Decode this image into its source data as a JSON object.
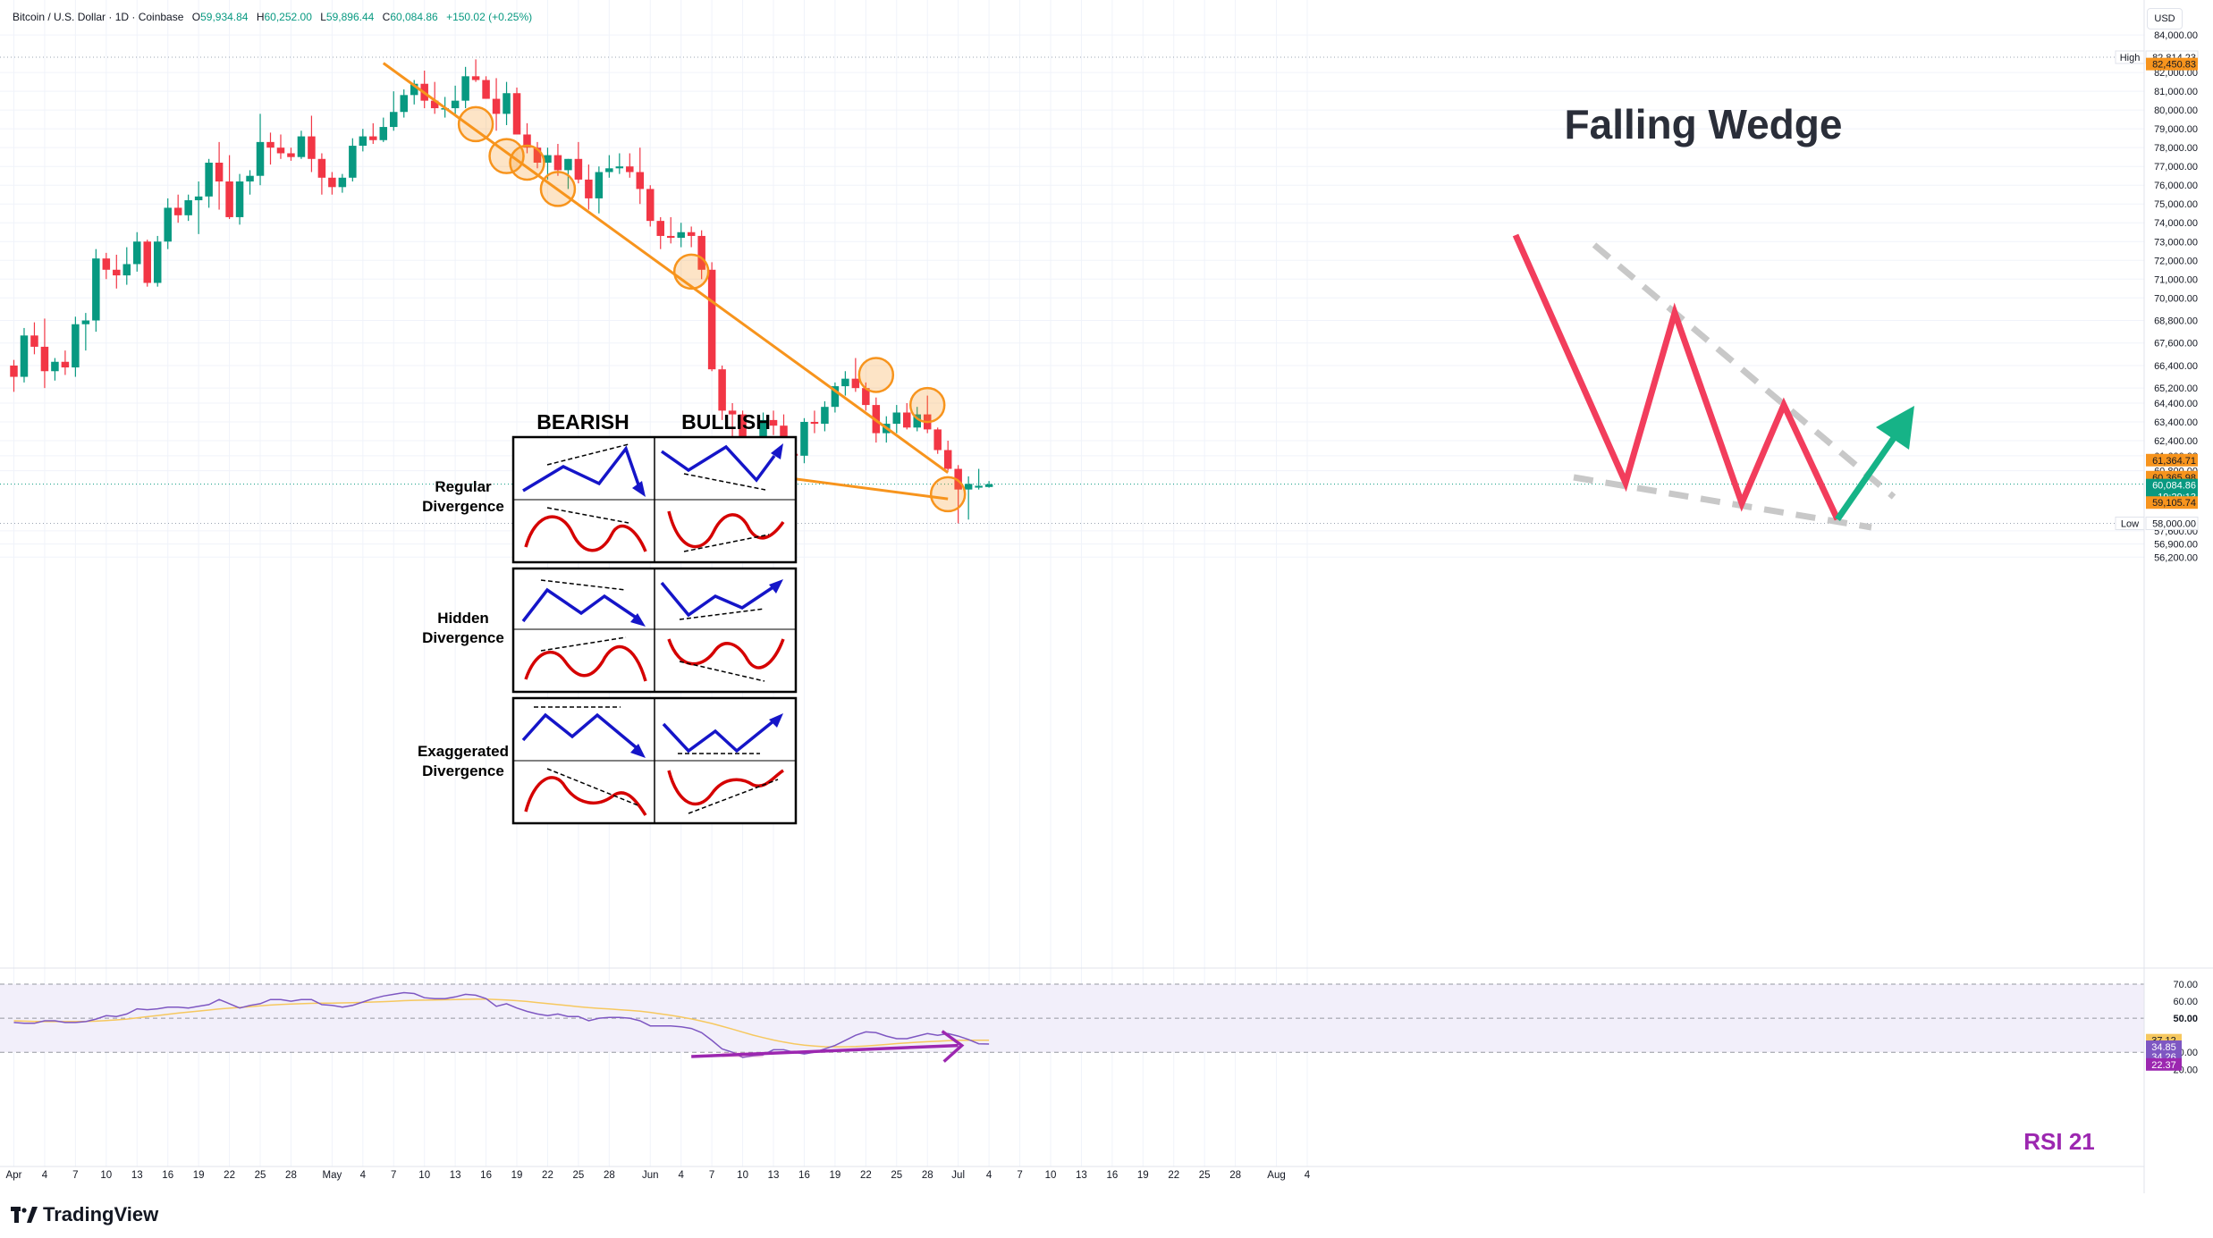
{
  "header": {
    "symbol": "Bitcoin / U.S. Dollar · 1D · Coinbase",
    "open_label": "O",
    "open": "59,934.84",
    "high_label": "H",
    "high": "60,252.00",
    "low_label": "L",
    "low": "59,896.44",
    "close_label": "C",
    "close": "60,084.86",
    "change": "+150.02 (+0.25%)"
  },
  "currency": "USD",
  "brand": "TradingView",
  "colors": {
    "up": "#089981",
    "down": "#f23645",
    "trendline": "#f7941d",
    "rsi": "#7e57c2",
    "rsi_ma": "#f6c85f",
    "annotation_arrow": "#9c27b0",
    "wedge_line": "#f23d5c",
    "wedge_arrow": "#16b387"
  },
  "chart_data": [
    {
      "type": "candlestick",
      "title": "Falling Wedge",
      "ylim": [
        55500,
        85200
      ],
      "x_tick_labels": [
        "Apr",
        "4",
        "7",
        "10",
        "13",
        "16",
        "19",
        "22",
        "25",
        "28",
        "May",
        "4",
        "7",
        "10",
        "13",
        "16",
        "19",
        "22",
        "25",
        "28",
        "Jun",
        "4",
        "7",
        "10",
        "13",
        "16",
        "19",
        "22",
        "25",
        "28",
        "Jul",
        "4",
        "7",
        "10",
        "13",
        "16",
        "19",
        "22",
        "25",
        "28",
        "Aug",
        "4"
      ],
      "y_tick_labels": [
        "84,000.00",
        "82,000.00",
        "81,000.00",
        "80,000.00",
        "79,000.00",
        "78,000.00",
        "77,000.00",
        "76,000.00",
        "75,000.00",
        "74,000.00",
        "73,000.00",
        "72,000.00",
        "71,000.00",
        "70,000.00",
        "68,800.00",
        "67,600.00",
        "66,400.00",
        "65,200.00",
        "64,400.00",
        "63,400.00",
        "62,400.00",
        "61,600.00",
        "60,800.00",
        "57,600.00",
        "56,900.00",
        "56,200.00"
      ],
      "price_labels": [
        {
          "label": "High",
          "value": "82,814.23"
        },
        {
          "label": "",
          "value": "82,450.83"
        },
        {
          "label": "",
          "value": "61,364.71"
        },
        {
          "label": "",
          "value": "60,365.98"
        },
        {
          "label": "",
          "value": "60,084.86"
        },
        {
          "label": "",
          "value": "19:29:13"
        },
        {
          "label": "",
          "value": "59,105.74"
        },
        {
          "label": "Low",
          "value": "58,000.00"
        }
      ],
      "candles": [
        [
          66400,
          66700,
          65000,
          65800
        ],
        [
          65800,
          68400,
          65500,
          68000
        ],
        [
          68000,
          68700,
          67000,
          67400
        ],
        [
          67400,
          68900,
          65200,
          66100
        ],
        [
          66100,
          66800,
          65600,
          66600
        ],
        [
          66600,
          67200,
          65900,
          66300
        ],
        [
          66300,
          69000,
          65800,
          68600
        ],
        [
          68600,
          69200,
          67200,
          68800
        ],
        [
          68800,
          72600,
          68200,
          72100
        ],
        [
          72100,
          72400,
          71000,
          71500
        ],
        [
          71500,
          72300,
          70500,
          71200
        ],
        [
          71200,
          72700,
          70700,
          71800
        ],
        [
          71800,
          73500,
          71400,
          73000
        ],
        [
          73000,
          73100,
          70600,
          70800
        ],
        [
          70800,
          73300,
          70600,
          73000
        ],
        [
          73000,
          75300,
          72600,
          74800
        ],
        [
          74800,
          75500,
          74000,
          74400
        ],
        [
          74400,
          75500,
          74100,
          75200
        ],
        [
          75200,
          76200,
          73400,
          75400
        ],
        [
          75400,
          77400,
          74800,
          77200
        ],
        [
          77200,
          78300,
          74700,
          76200
        ],
        [
          76200,
          77600,
          74200,
          74300
        ],
        [
          74300,
          76600,
          73900,
          76200
        ],
        [
          76200,
          76800,
          75500,
          76500
        ],
        [
          76500,
          79800,
          76000,
          78300
        ],
        [
          78300,
          78800,
          77100,
          78000
        ],
        [
          78000,
          78700,
          77400,
          77700
        ],
        [
          77700,
          78000,
          77300,
          77500
        ],
        [
          77500,
          78900,
          77400,
          78600
        ],
        [
          78600,
          79700,
          76700,
          77400
        ],
        [
          77400,
          77700,
          75500,
          76400
        ],
        [
          76400,
          76700,
          75500,
          75900
        ],
        [
          75900,
          76600,
          75600,
          76400
        ],
        [
          76400,
          78500,
          76200,
          78100
        ],
        [
          78100,
          79000,
          77800,
          78600
        ],
        [
          78600,
          79300,
          78200,
          78400
        ],
        [
          78400,
          79600,
          78300,
          79100
        ],
        [
          79100,
          81000,
          78900,
          79900
        ],
        [
          79900,
          81100,
          79600,
          80800
        ],
        [
          80800,
          81600,
          80300,
          81400
        ],
        [
          81400,
          82100,
          80100,
          80500
        ],
        [
          80500,
          81500,
          79800,
          80100
        ],
        [
          80100,
          80700,
          79600,
          80100
        ],
        [
          80100,
          81300,
          79800,
          80500
        ],
        [
          80500,
          82300,
          80100,
          81800
        ],
        [
          81800,
          82700,
          81500,
          81600
        ],
        [
          81600,
          81800,
          80600,
          80600
        ],
        [
          80600,
          81700,
          78900,
          79800
        ],
        [
          79800,
          81500,
          79200,
          80900
        ],
        [
          80900,
          81200,
          78700,
          78700
        ],
        [
          78700,
          79300,
          77700,
          78000
        ],
        [
          78000,
          78300,
          76900,
          77200
        ],
        [
          77200,
          78000,
          76300,
          77600
        ],
        [
          77600,
          78200,
          76500,
          76800
        ],
        [
          76800,
          77400,
          75800,
          77400
        ],
        [
          77400,
          78300,
          76100,
          76300
        ],
        [
          76300,
          77100,
          74700,
          75300
        ],
        [
          75300,
          77000,
          74500,
          76700
        ],
        [
          76700,
          77600,
          76400,
          76900
        ],
        [
          76900,
          77700,
          76600,
          77000
        ],
        [
          77000,
          77700,
          76400,
          76700
        ],
        [
          76700,
          78000,
          75000,
          75800
        ],
        [
          75800,
          76000,
          73800,
          74100
        ],
        [
          74100,
          74300,
          72600,
          73300
        ],
        [
          73300,
          74300,
          72900,
          73200
        ],
        [
          73200,
          74000,
          72700,
          73500
        ],
        [
          73500,
          73800,
          72700,
          73300
        ],
        [
          73300,
          73600,
          71000,
          71500
        ],
        [
          71500,
          71900,
          66100,
          66200
        ],
        [
          66200,
          66400,
          63500,
          64000
        ],
        [
          64000,
          64400,
          61300,
          63800
        ],
        [
          63800,
          64000,
          59600,
          60700
        ],
        [
          60700,
          61500,
          59900,
          61200
        ],
        [
          61200,
          63900,
          61000,
          63500
        ],
        [
          63500,
          64000,
          62700,
          63200
        ],
        [
          63200,
          63800,
          61200,
          61700
        ],
        [
          61700,
          62400,
          60800,
          61600
        ],
        [
          61600,
          63600,
          61200,
          63400
        ],
        [
          63400,
          64000,
          62800,
          63300
        ],
        [
          63300,
          64500,
          62900,
          64200
        ],
        [
          64200,
          65500,
          63900,
          65300
        ],
        [
          65300,
          66100,
          64800,
          65700
        ],
        [
          65700,
          66800,
          65000,
          65200
        ],
        [
          65200,
          65500,
          64000,
          64300
        ],
        [
          64300,
          64700,
          62300,
          62800
        ],
        [
          62800,
          63700,
          62300,
          63300
        ],
        [
          63300,
          64300,
          62800,
          63900
        ],
        [
          63900,
          64400,
          63000,
          63100
        ],
        [
          63100,
          64200,
          62900,
          63800
        ],
        [
          63800,
          64800,
          62800,
          63000
        ],
        [
          63000,
          63100,
          61700,
          61900
        ],
        [
          61900,
          62400,
          60800,
          60900
        ],
        [
          60900,
          61100,
          58000,
          59800
        ],
        [
          59800,
          60500,
          58200,
          60100
        ],
        [
          59900,
          60900,
          59800,
          60000
        ],
        [
          59934.84,
          60252,
          59896.44,
          60084.86
        ]
      ],
      "trendlines": [
        {
          "name": "upper",
          "points": [
            [
              "May 5",
              82500
            ],
            [
              "Jun 29",
              60700
            ]
          ]
        },
        {
          "name": "lower",
          "points": [
            [
              "Jun 1",
              61300
            ],
            [
              "Jun 29",
              59300
            ]
          ]
        }
      ]
    },
    {
      "type": "line",
      "title": "RSI 21",
      "ylim": [
        20,
        72
      ],
      "y_tick_labels": [
        "70.00",
        "60.00",
        "50.00",
        "30.00",
        "20.00"
      ],
      "value_labels": [
        "37.12",
        "34.85",
        "34.26",
        "22.37"
      ],
      "series": [
        {
          "values": [
            47.5,
            47,
            47,
            48.5,
            48.5,
            47.5,
            47.5,
            48,
            49.5,
            51.5,
            51,
            52.5,
            55.5,
            55,
            55.5,
            56.5,
            56.5,
            56,
            57,
            58,
            61,
            58.5,
            56,
            57.5,
            58.5,
            61,
            61,
            60,
            61,
            61,
            58,
            57.5,
            56.5,
            57.5,
            59.5,
            61.5,
            63,
            64,
            65,
            64.5,
            62,
            61.5,
            61.5,
            62.5,
            64,
            63.5,
            61.5,
            57,
            58.5,
            56,
            54,
            52.5,
            51.5,
            52.5,
            51,
            51,
            48.5,
            50,
            50.5,
            50.5,
            50,
            48.5,
            45.5,
            45.5,
            45.5,
            45,
            44,
            41.5,
            37,
            32,
            30,
            27,
            28,
            28.5,
            31.5,
            31.5,
            30,
            29,
            30,
            32,
            34,
            37,
            40,
            42,
            41.5,
            39.5,
            38,
            38,
            39.5,
            41,
            40,
            41,
            39.5,
            37.5,
            35,
            34.85
          ]
        },
        {
          "name": "",
          "values": [
            48.5,
            48.3,
            48.1,
            48,
            48,
            48,
            48,
            48.1,
            48.3,
            48.6,
            49,
            49.5,
            50.2,
            50.9,
            51.6,
            52.3,
            53,
            53.6,
            54.2,
            54.8,
            55.4,
            55.9,
            56.3,
            56.8,
            57.3,
            57.7,
            58.1,
            58.3,
            58.5,
            58.7,
            58.8,
            58.9,
            59,
            59.1,
            59.3,
            59.5,
            59.7,
            60,
            60.3,
            60.5,
            60.6,
            60.7,
            60.8,
            61,
            61.1,
            61.2,
            61.2,
            61,
            60.7,
            60.3,
            59.8,
            59.2,
            58.6,
            58,
            57.4,
            56.8,
            56.2,
            55.8,
            55.4,
            55,
            54.6,
            54.1,
            53.4,
            52.6,
            51.7,
            50.7,
            49.6,
            48.3,
            46.9,
            45.3,
            43.6,
            41.8,
            40.1,
            38.6,
            37.2,
            36,
            35,
            34.2,
            33.7,
            33.3,
            33.2,
            33.2,
            33.4,
            33.7,
            34.1,
            34.6,
            35.1,
            35.5,
            35.9,
            36.2,
            36.5,
            36.8,
            37,
            37.1,
            37.1,
            37.12
          ]
        }
      ],
      "divergence_arrow": {
        "from": [
          "Jun 4",
          27.5
        ],
        "to": [
          "Jun 29",
          34
        ]
      }
    }
  ],
  "cheatsheet": {
    "col_headers": [
      "BEARISH",
      "BULLISH"
    ],
    "rows": [
      {
        "label_lines": [
          "Regular",
          "Divergence"
        ]
      },
      {
        "label_lines": [
          "Hidden",
          "Divergence"
        ]
      },
      {
        "label_lines": [
          "Exaggerated",
          "Divergence"
        ]
      }
    ]
  }
}
